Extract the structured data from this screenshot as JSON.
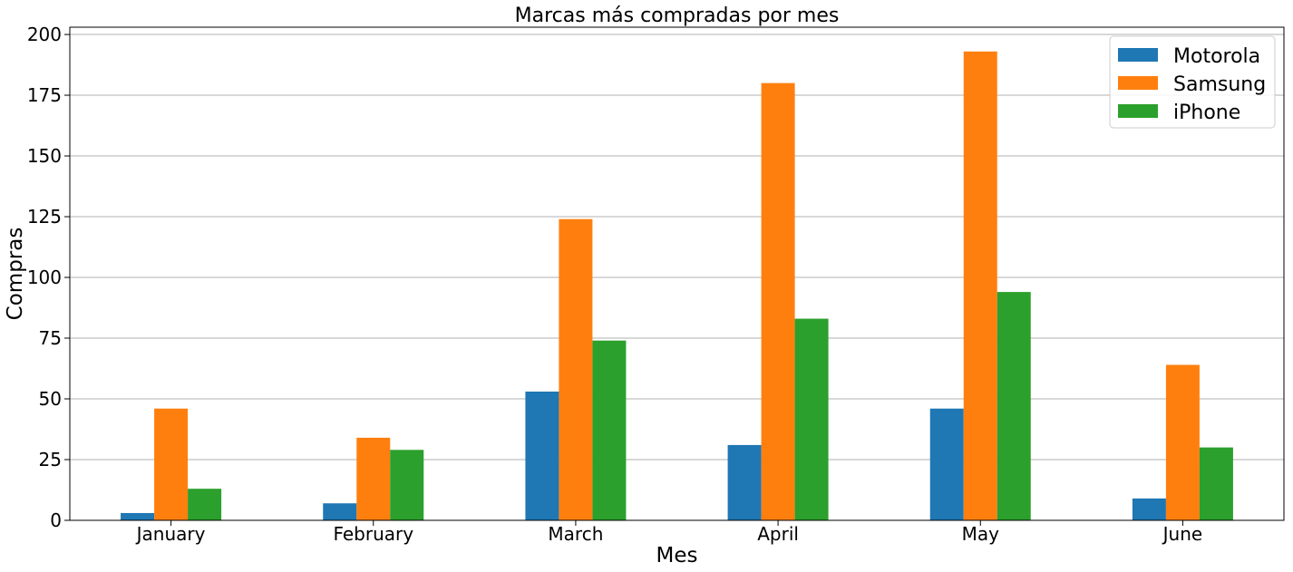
{
  "chart_data": {
    "type": "bar",
    "title": "Marcas más compradas por mes",
    "xlabel": "Mes",
    "ylabel": "Compras",
    "categories": [
      "January",
      "February",
      "March",
      "April",
      "May",
      "June"
    ],
    "series": [
      {
        "name": "Motorola",
        "color": "#1f77b4",
        "values": [
          3,
          7,
          53,
          31,
          46,
          9
        ]
      },
      {
        "name": "Samsung",
        "color": "#ff7f0e",
        "values": [
          46,
          34,
          124,
          180,
          193,
          64
        ]
      },
      {
        "name": "iPhone",
        "color": "#2ca02c",
        "values": [
          13,
          29,
          74,
          83,
          94,
          30
        ]
      }
    ],
    "ylim": [
      0,
      203
    ],
    "yticks": [
      0,
      25,
      50,
      75,
      100,
      125,
      150,
      175,
      200
    ],
    "grid": "y",
    "legend_position": "top-right"
  }
}
